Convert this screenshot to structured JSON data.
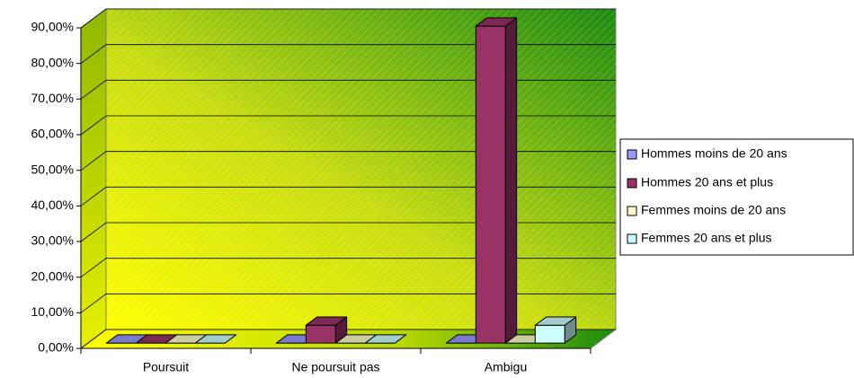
{
  "chart_data": {
    "type": "bar3d",
    "categories": [
      "Poursuit",
      "Ne poursuit pas",
      "Ambigu"
    ],
    "series": [
      {
        "name": "Hommes moins de 20 ans",
        "color": "#9999ff",
        "values": [
          0,
          0,
          0
        ]
      },
      {
        "name": "Hommes 20 ans et plus",
        "color": "#993366",
        "values": [
          0,
          5,
          89
        ]
      },
      {
        "name": "Femmes moins de 20 ans",
        "color": "#ffffcc",
        "values": [
          0,
          0,
          0
        ]
      },
      {
        "name": "Femmes 20 ans et plus",
        "color": "#ccffff",
        "values": [
          0,
          0,
          5
        ]
      }
    ],
    "ylim": [
      0,
      90
    ],
    "yticks": [
      {
        "value": 0,
        "label": "0,00%"
      },
      {
        "value": 10,
        "label": "10,00%"
      },
      {
        "value": 20,
        "label": "20,00%"
      },
      {
        "value": 30,
        "label": "30,00%"
      },
      {
        "value": 40,
        "label": "40,00%"
      },
      {
        "value": 50,
        "label": "50,00%"
      },
      {
        "value": 60,
        "label": "60,00%"
      },
      {
        "value": 70,
        "label": "70,00%"
      },
      {
        "value": 80,
        "label": "80,00%"
      },
      {
        "value": 90,
        "label": "90,00%"
      }
    ],
    "grid": true,
    "legend": "right"
  }
}
